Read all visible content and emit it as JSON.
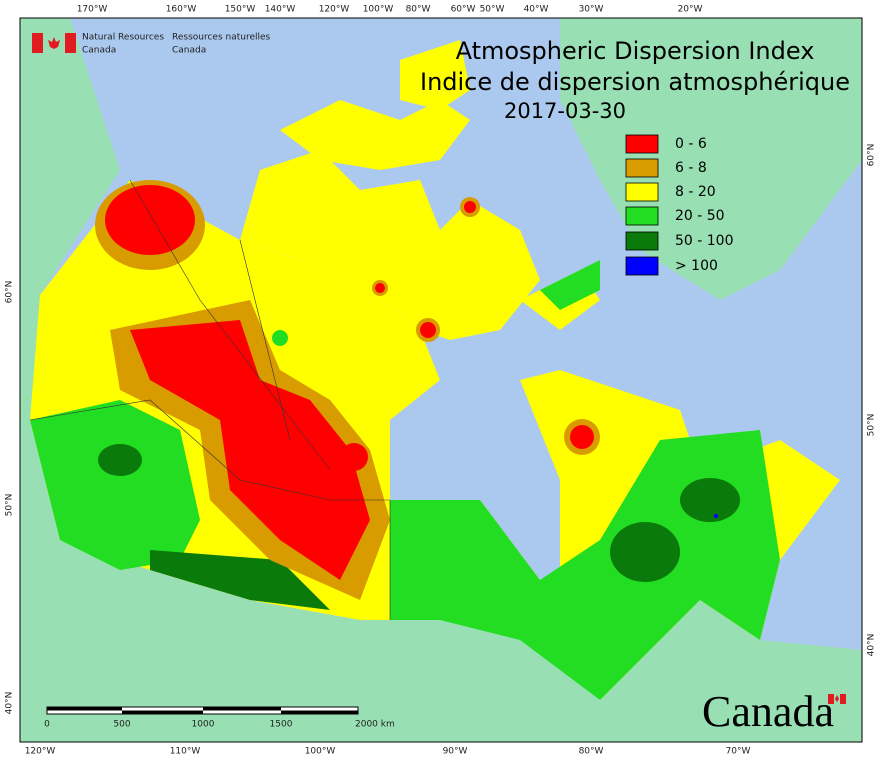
{
  "header": {
    "agency_en": [
      "Natural Resources",
      "Canada"
    ],
    "agency_fr": [
      "Ressources naturelles",
      "Canada"
    ]
  },
  "title": [
    "Atmospheric Dispersion Index",
    "Indice de dispersion atmosphérique"
  ],
  "date": "2017-03-30",
  "legend": [
    {
      "label": "0 - 6",
      "color": "#ff0000"
    },
    {
      "label": "6 - 8",
      "color": "#d89b00"
    },
    {
      "label": "8 - 20",
      "color": "#ffff00"
    },
    {
      "label": "20 - 50",
      "color": "#22dd22"
    },
    {
      "label": "50 - 100",
      "color": "#0a7a0a"
    },
    {
      "label": "> 100",
      "color": "#0000ff"
    }
  ],
  "top_labels": [
    "170°W",
    "160°W",
    "150°W",
    "140°W",
    "120°W",
    "100°W",
    "80°W",
    "60°W",
    "50°W",
    "40°W",
    "30°W",
    "20°W"
  ],
  "bottom_labels": [
    "120°W",
    "110°W",
    "100°W",
    "90°W",
    "80°W",
    "70°W"
  ],
  "left_labels": [
    "60°N",
    "50°N",
    "40°N"
  ],
  "right_labels": [
    "60°N",
    "50°N",
    "40°N"
  ],
  "scale_labels": [
    "0",
    "500",
    "1000",
    "1500",
    "2000 km"
  ],
  "wordmark": "Canada"
}
